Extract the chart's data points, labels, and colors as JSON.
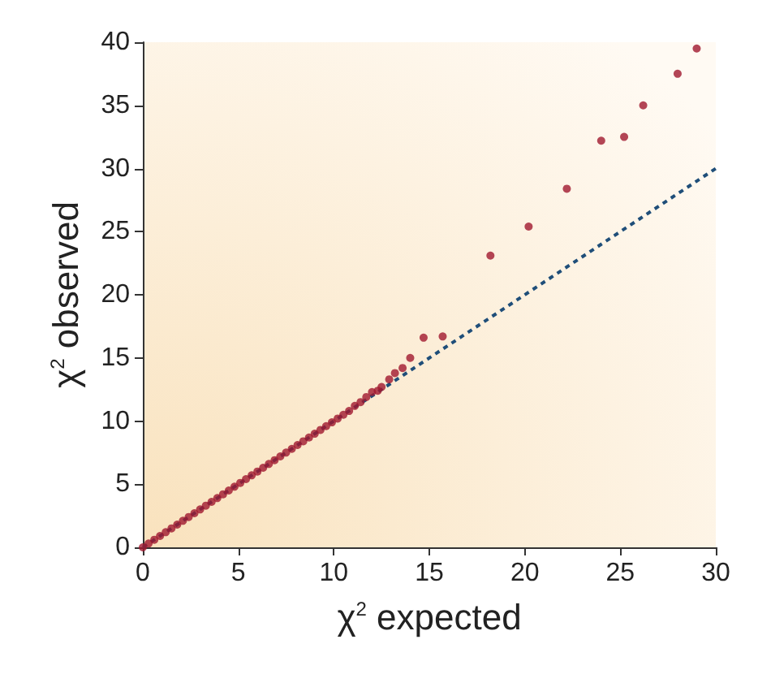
{
  "chart_data": {
    "type": "scatter",
    "xlabel": "χ$^{2}$ expected",
    "ylabel": "χ$^{2}$ observed",
    "xlim": [
      0,
      30
    ],
    "ylim": [
      0,
      40
    ],
    "xticks": [
      0,
      5,
      10,
      15,
      20,
      25,
      30
    ],
    "yticks": [
      0,
      5,
      10,
      15,
      20,
      25,
      30,
      35,
      40
    ],
    "grid": false,
    "series": [
      {
        "color": "#a0182e",
        "marker": "circle",
        "x": [
          0,
          0.3,
          0.6,
          0.9,
          1.2,
          1.5,
          1.8,
          2.1,
          2.4,
          2.7,
          3,
          3.3,
          3.6,
          3.9,
          4.2,
          4.5,
          4.8,
          5.1,
          5.4,
          5.7,
          6,
          6.3,
          6.6,
          6.9,
          7.2,
          7.5,
          7.8,
          8.1,
          8.4,
          8.7,
          9,
          9.3,
          9.6,
          9.9,
          10.2,
          10.5,
          10.8,
          11.1,
          11.4,
          11.7,
          12,
          12.3,
          12.5,
          12.9,
          13.2,
          13.6,
          14,
          14.7,
          15.7,
          18.2,
          20.2,
          22.2,
          24,
          25.2,
          26.2,
          28,
          29
        ],
        "values": [
          0,
          0.3,
          0.6,
          0.9,
          1.2,
          1.5,
          1.8,
          2.1,
          2.4,
          2.7,
          3,
          3.3,
          3.6,
          3.9,
          4.2,
          4.5,
          4.8,
          5.1,
          5.4,
          5.7,
          6,
          6.3,
          6.6,
          6.9,
          7.2,
          7.5,
          7.8,
          8.1,
          8.4,
          8.7,
          9,
          9.3,
          9.6,
          9.9,
          10.2,
          10.5,
          10.8,
          11.2,
          11.5,
          11.9,
          12.3,
          12.4,
          12.7,
          13.3,
          13.8,
          14.2,
          15,
          16.6,
          16.7,
          23.1,
          25.4,
          28.4,
          32.2,
          32.5,
          35,
          37.5,
          39.5
        ]
      },
      {
        "type": "line",
        "color": "#1f4e79",
        "marker": "none",
        "line_style": "dashed",
        "x": [
          0,
          30
        ],
        "values": [
          0,
          30
        ]
      }
    ]
  }
}
